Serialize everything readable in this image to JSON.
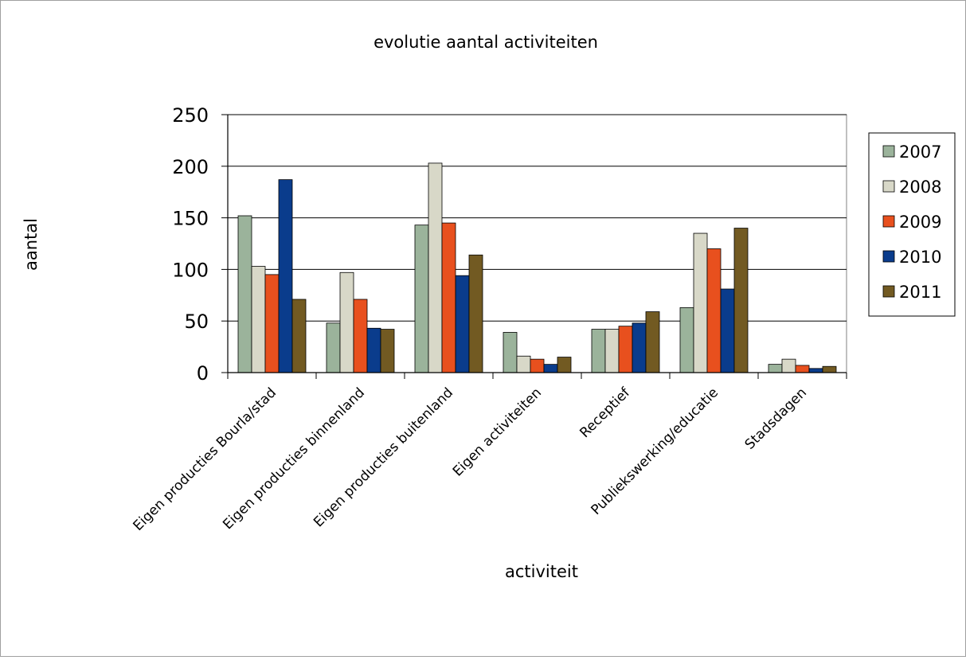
{
  "chart_data": {
    "type": "bar",
    "title": "evolutie aantal activiteiten",
    "xlabel": "activiteit",
    "ylabel": "aantal",
    "ylim": [
      0,
      250
    ],
    "yticks": [
      0,
      50,
      100,
      150,
      200,
      250
    ],
    "grid": true,
    "legend_position": "right",
    "categories": [
      "Eigen producties Bourla/stad",
      "Eigen producties binnenland",
      "Eigen producties buitenland",
      "Eigen activiteiten",
      "Receptief",
      "Publiekswerking/educatie",
      "Stadsdagen"
    ],
    "series": [
      {
        "name": "2007",
        "color": "#9bb39b",
        "values": [
          152,
          48,
          143,
          39,
          42,
          63,
          8
        ]
      },
      {
        "name": "2008",
        "color": "#d8d8c8",
        "values": [
          103,
          97,
          203,
          16,
          42,
          135,
          13
        ]
      },
      {
        "name": "2009",
        "color": "#e8501e",
        "values": [
          95,
          71,
          145,
          13,
          45,
          120,
          7
        ]
      },
      {
        "name": "2010",
        "color": "#0a3c8c",
        "values": [
          187,
          43,
          94,
          8,
          48,
          81,
          4
        ]
      },
      {
        "name": "2011",
        "color": "#725a22",
        "values": [
          71,
          42,
          114,
          15,
          59,
          140,
          6
        ]
      }
    ]
  }
}
